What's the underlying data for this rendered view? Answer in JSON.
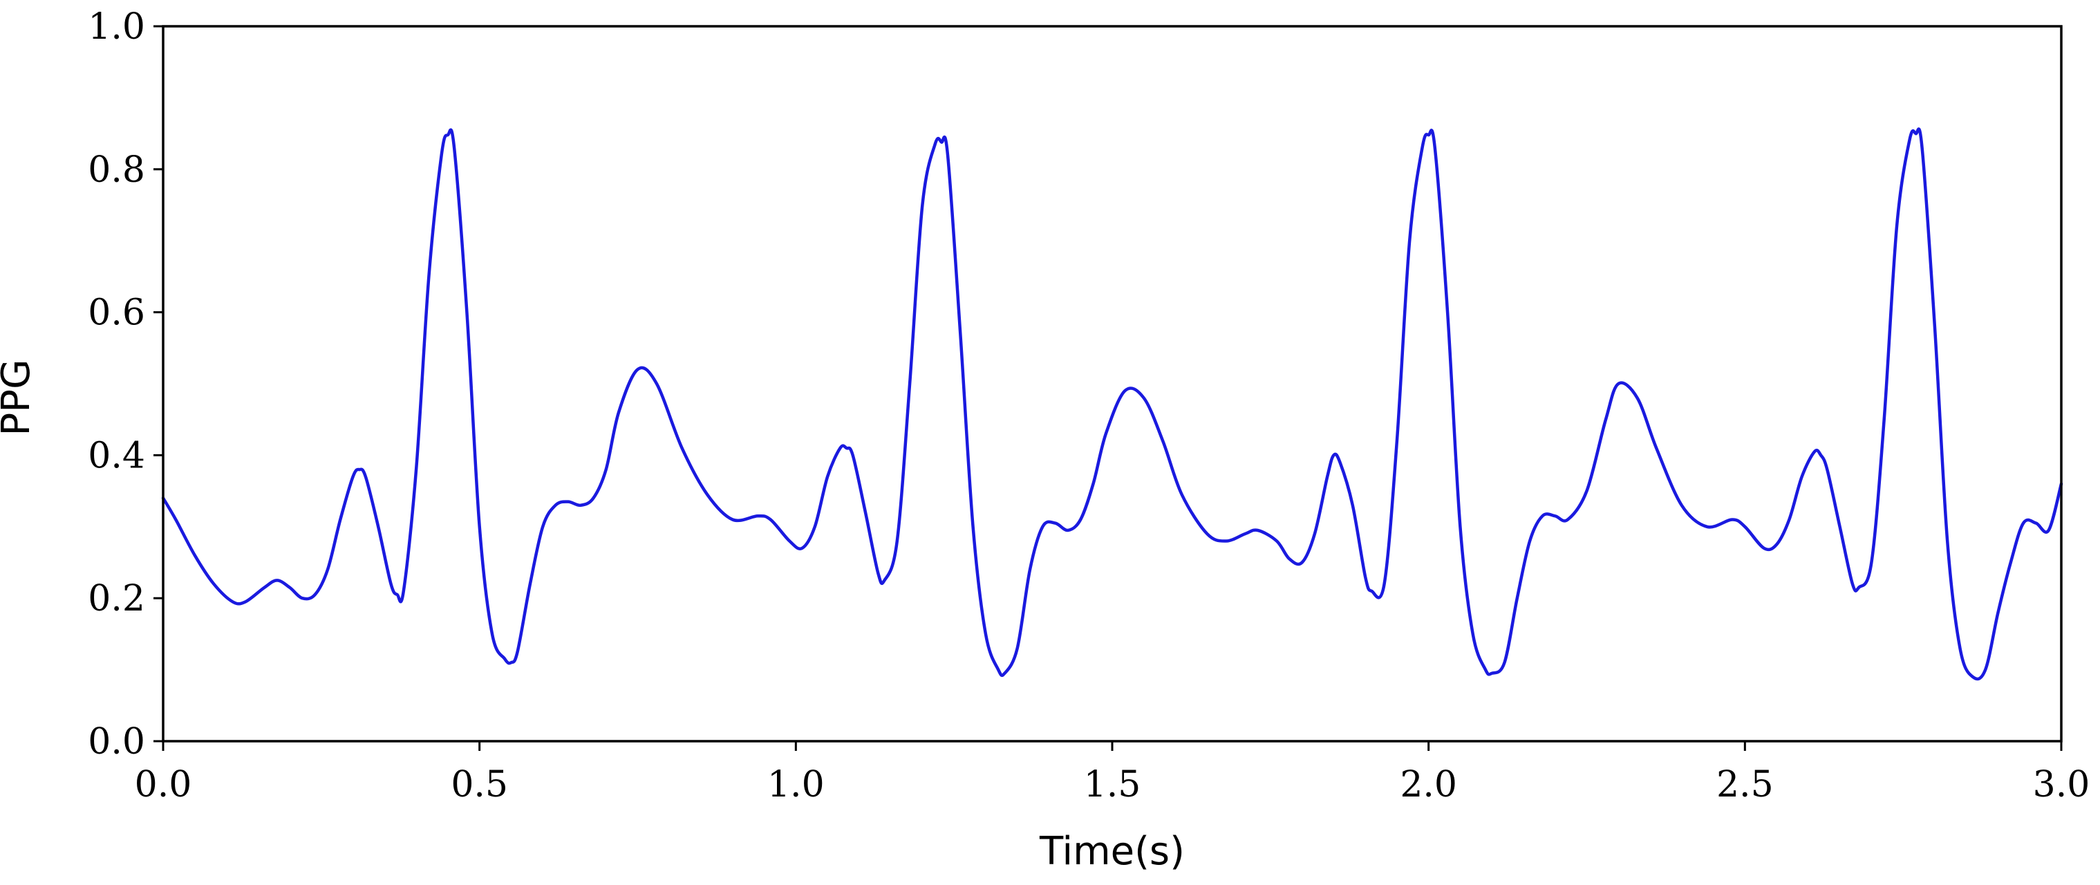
{
  "chart_data": {
    "type": "line",
    "title": "",
    "xlabel": "Time(s)",
    "ylabel": "PPG",
    "xlim": [
      0.0,
      3.0
    ],
    "ylim": [
      0.0,
      1.0
    ],
    "xticks": [
      "0.0",
      "0.5",
      "1.0",
      "1.5",
      "2.0",
      "2.5",
      "3.0"
    ],
    "yticks": [
      "0.0",
      "0.2",
      "0.4",
      "0.6",
      "0.8",
      "1.0"
    ],
    "grid": false,
    "line_color": "#1a1adf",
    "series": [
      {
        "name": "",
        "x": [
          0.0,
          0.02,
          0.05,
          0.08,
          0.11,
          0.13,
          0.16,
          0.18,
          0.2,
          0.22,
          0.24,
          0.26,
          0.28,
          0.3,
          0.31,
          0.32,
          0.34,
          0.36,
          0.37,
          0.38,
          0.4,
          0.42,
          0.44,
          0.45,
          0.46,
          0.48,
          0.5,
          0.52,
          0.54,
          0.55,
          0.56,
          0.58,
          0.6,
          0.62,
          0.64,
          0.66,
          0.68,
          0.7,
          0.72,
          0.75,
          0.78,
          0.82,
          0.86,
          0.9,
          0.94,
          0.96,
          0.99,
          1.01,
          1.03,
          1.05,
          1.07,
          1.08,
          1.09,
          1.11,
          1.13,
          1.14,
          1.16,
          1.18,
          1.2,
          1.22,
          1.23,
          1.24,
          1.26,
          1.28,
          1.3,
          1.32,
          1.33,
          1.35,
          1.37,
          1.39,
          1.41,
          1.43,
          1.45,
          1.47,
          1.49,
          1.52,
          1.55,
          1.58,
          1.61,
          1.65,
          1.68,
          1.71,
          1.73,
          1.76,
          1.78,
          1.8,
          1.82,
          1.84,
          1.85,
          1.86,
          1.88,
          1.9,
          1.91,
          1.93,
          1.95,
          1.97,
          1.99,
          2.0,
          2.01,
          2.03,
          2.05,
          2.07,
          2.09,
          2.1,
          2.12,
          2.14,
          2.16,
          2.18,
          2.2,
          2.22,
          2.25,
          2.28,
          2.3,
          2.33,
          2.36,
          2.4,
          2.44,
          2.48,
          2.5,
          2.53,
          2.55,
          2.57,
          2.59,
          2.61,
          2.62,
          2.63,
          2.65,
          2.67,
          2.68,
          2.7,
          2.72,
          2.74,
          2.76,
          2.77,
          2.78,
          2.8,
          2.82,
          2.84,
          2.86,
          2.88,
          2.9,
          2.92,
          2.94,
          2.96,
          2.98,
          3.0
        ],
        "y": [
          0.34,
          0.31,
          0.26,
          0.22,
          0.195,
          0.195,
          0.215,
          0.225,
          0.215,
          0.2,
          0.205,
          0.24,
          0.31,
          0.37,
          0.38,
          0.37,
          0.3,
          0.22,
          0.205,
          0.21,
          0.38,
          0.65,
          0.82,
          0.848,
          0.83,
          0.6,
          0.3,
          0.15,
          0.115,
          0.11,
          0.125,
          0.22,
          0.3,
          0.33,
          0.335,
          0.33,
          0.34,
          0.38,
          0.46,
          0.52,
          0.5,
          0.41,
          0.345,
          0.31,
          0.315,
          0.31,
          0.28,
          0.27,
          0.3,
          0.37,
          0.41,
          0.41,
          0.4,
          0.32,
          0.235,
          0.225,
          0.28,
          0.5,
          0.75,
          0.835,
          0.838,
          0.82,
          0.57,
          0.3,
          0.15,
          0.1,
          0.095,
          0.13,
          0.24,
          0.3,
          0.305,
          0.295,
          0.31,
          0.36,
          0.43,
          0.49,
          0.48,
          0.42,
          0.345,
          0.29,
          0.28,
          0.29,
          0.295,
          0.28,
          0.255,
          0.25,
          0.29,
          0.37,
          0.4,
          0.39,
          0.33,
          0.23,
          0.21,
          0.22,
          0.42,
          0.7,
          0.83,
          0.848,
          0.83,
          0.6,
          0.3,
          0.15,
          0.1,
          0.095,
          0.11,
          0.2,
          0.28,
          0.315,
          0.315,
          0.31,
          0.35,
          0.45,
          0.5,
          0.48,
          0.41,
          0.33,
          0.3,
          0.31,
          0.3,
          0.27,
          0.275,
          0.31,
          0.37,
          0.405,
          0.4,
          0.38,
          0.3,
          0.22,
          0.215,
          0.25,
          0.45,
          0.72,
          0.84,
          0.85,
          0.83,
          0.58,
          0.28,
          0.13,
          0.09,
          0.1,
          0.18,
          0.25,
          0.305,
          0.305,
          0.295,
          0.36
        ]
      }
    ]
  }
}
